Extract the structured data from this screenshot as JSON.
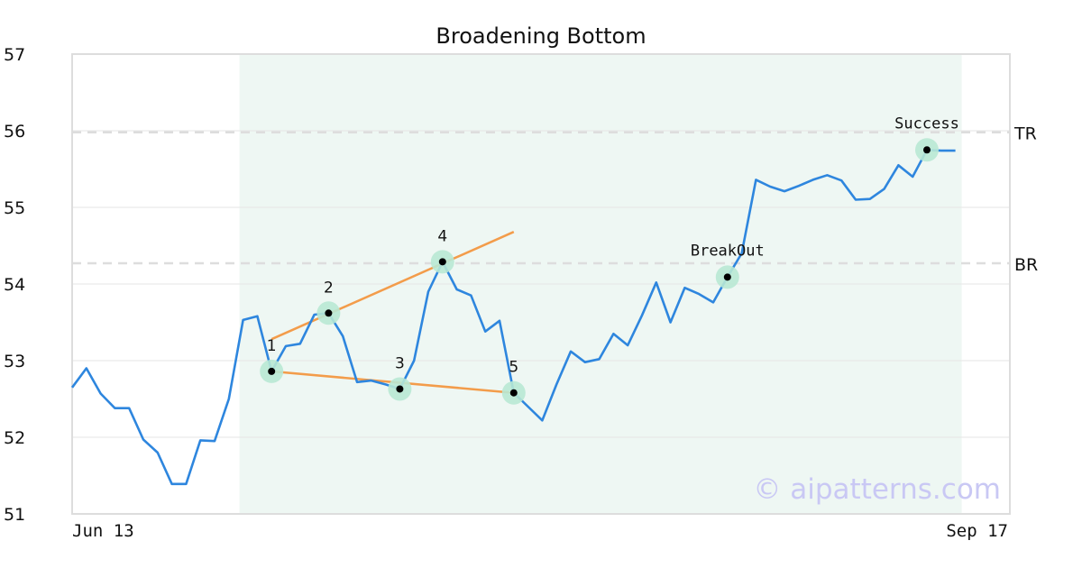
{
  "chart_data": {
    "type": "line",
    "title": "Broadening Bottom",
    "xlabel": "",
    "ylabel": "",
    "ylim": [
      51,
      57
    ],
    "yticks": [
      51,
      52,
      53,
      54,
      55,
      56,
      57
    ],
    "grid": true,
    "x_start_label": "Jun 13",
    "x_end_label": "Sep 17",
    "colors": {
      "price": "#2e86de",
      "trendline": "#f39c4a",
      "marker_halo": "#b8e8d4",
      "marker_dot": "#000000",
      "pattern_region": "#eef7f3",
      "level_line": "#dddddd",
      "grid": "#e6e6e6",
      "frame": "#dddddd"
    },
    "series": [
      {
        "values": [
          52.65,
          52.9,
          52.57,
          52.38,
          52.38,
          51.97,
          51.8,
          51.39,
          51.39,
          51.96,
          51.95,
          52.5,
          53.53,
          53.58,
          52.86,
          53.19,
          53.22,
          53.6,
          53.62,
          53.32,
          52.72,
          52.74,
          52.69,
          52.63,
          53.0,
          53.9,
          54.29,
          53.93,
          53.85,
          53.38,
          53.52,
          52.58,
          52.4,
          52.22,
          52.69,
          53.12,
          52.98,
          53.02,
          53.35,
          53.2,
          53.59,
          54.02,
          53.5,
          53.95,
          53.87,
          53.76,
          54.09,
          54.4,
          55.36,
          55.27,
          55.21,
          55.28,
          55.36,
          55.42,
          55.35,
          55.1,
          55.11,
          55.24,
          55.55,
          55.4,
          55.75,
          55.74,
          55.74
        ]
      }
    ],
    "pattern_region": {
      "start_index": 12,
      "end_index": 62
    },
    "levels": [
      {
        "label": "TR",
        "value": 55.98
      },
      {
        "label": "BR",
        "value": 54.27
      }
    ],
    "trendlines": [
      {
        "from": [
          14,
          53.28
        ],
        "to": [
          31,
          54.68
        ]
      },
      {
        "from": [
          14,
          52.86
        ],
        "to": [
          31,
          52.58
        ]
      }
    ],
    "points": [
      {
        "label": "1",
        "index": 14,
        "value": 52.86
      },
      {
        "label": "2",
        "index": 18,
        "value": 53.62
      },
      {
        "label": "3",
        "index": 23,
        "value": 52.63
      },
      {
        "label": "4",
        "index": 26,
        "value": 54.29
      },
      {
        "label": "5",
        "index": 31,
        "value": 52.58
      },
      {
        "label": "BreakOut",
        "index": 46,
        "value": 54.09
      },
      {
        "label": "Success",
        "index": 60,
        "value": 55.75
      }
    ],
    "watermark": "© aipatterns.com"
  }
}
